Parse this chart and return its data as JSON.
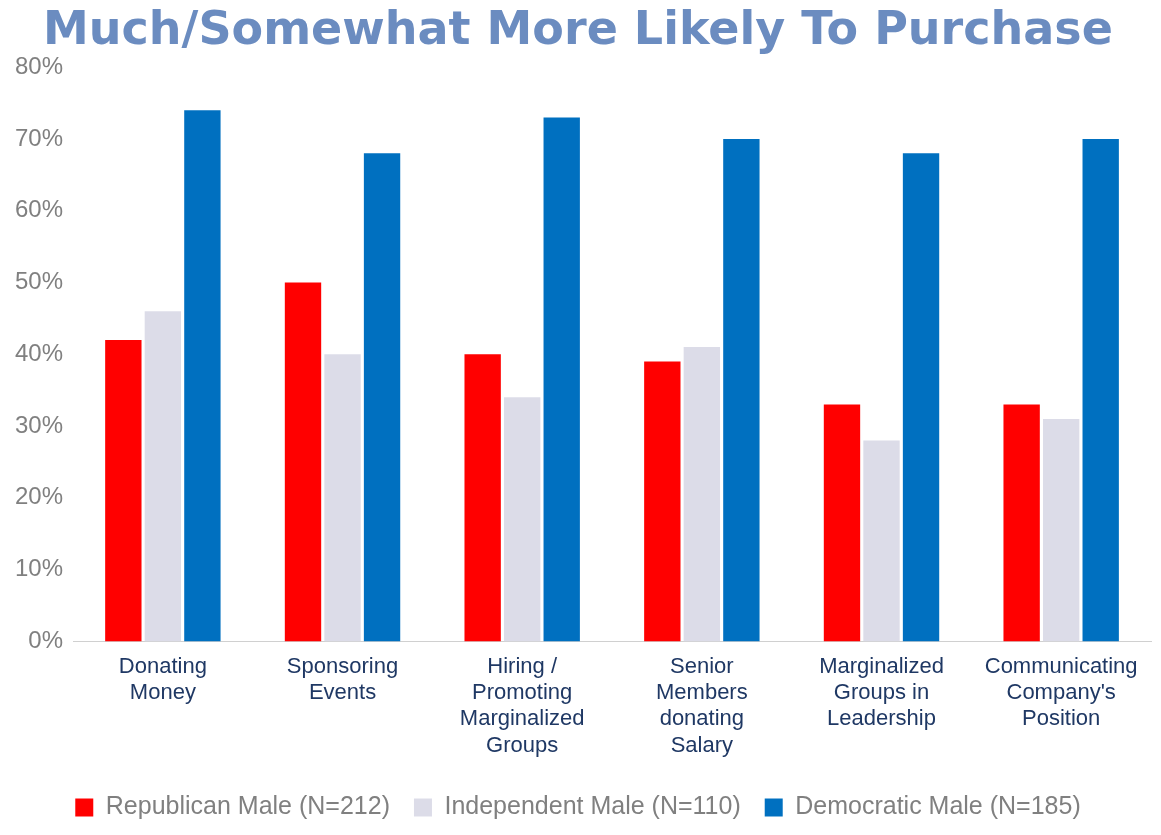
{
  "chart_data": {
    "type": "bar",
    "title": "Much/Somewhat More Likely To Purchase",
    "categories": [
      "Donating Money",
      "Sponsoring Events",
      "Hiring / Promoting Marginalized Groups",
      "Senior Members donating Salary",
      "Marginalized Groups in Leadership",
      "Communicating Company's Position"
    ],
    "series": [
      {
        "name": "Republican Male (N=212)",
        "color": "#ff0000",
        "values": [
          42,
          50,
          40,
          39,
          33,
          33
        ]
      },
      {
        "name": "Independent Male (N=110)",
        "color": "#dcdce8",
        "values": [
          46,
          40,
          34,
          41,
          28,
          31
        ]
      },
      {
        "name": "Democratic Male (N=185)",
        "color": "#0070c0",
        "values": [
          74,
          68,
          73,
          70,
          68,
          70
        ]
      }
    ],
    "ylim": [
      0,
      80
    ],
    "yticks": [
      {
        "value": 0,
        "label": "0%"
      },
      {
        "value": 10,
        "label": "10%"
      },
      {
        "value": 20,
        "label": "20%"
      },
      {
        "value": 30,
        "label": "30%"
      },
      {
        "value": 40,
        "label": "40%"
      },
      {
        "value": 50,
        "label": "50%"
      },
      {
        "value": 60,
        "label": "60%"
      },
      {
        "value": 70,
        "label": "70%"
      },
      {
        "value": 80,
        "label": "80%"
      }
    ],
    "grid": false,
    "legend": "bottom"
  }
}
